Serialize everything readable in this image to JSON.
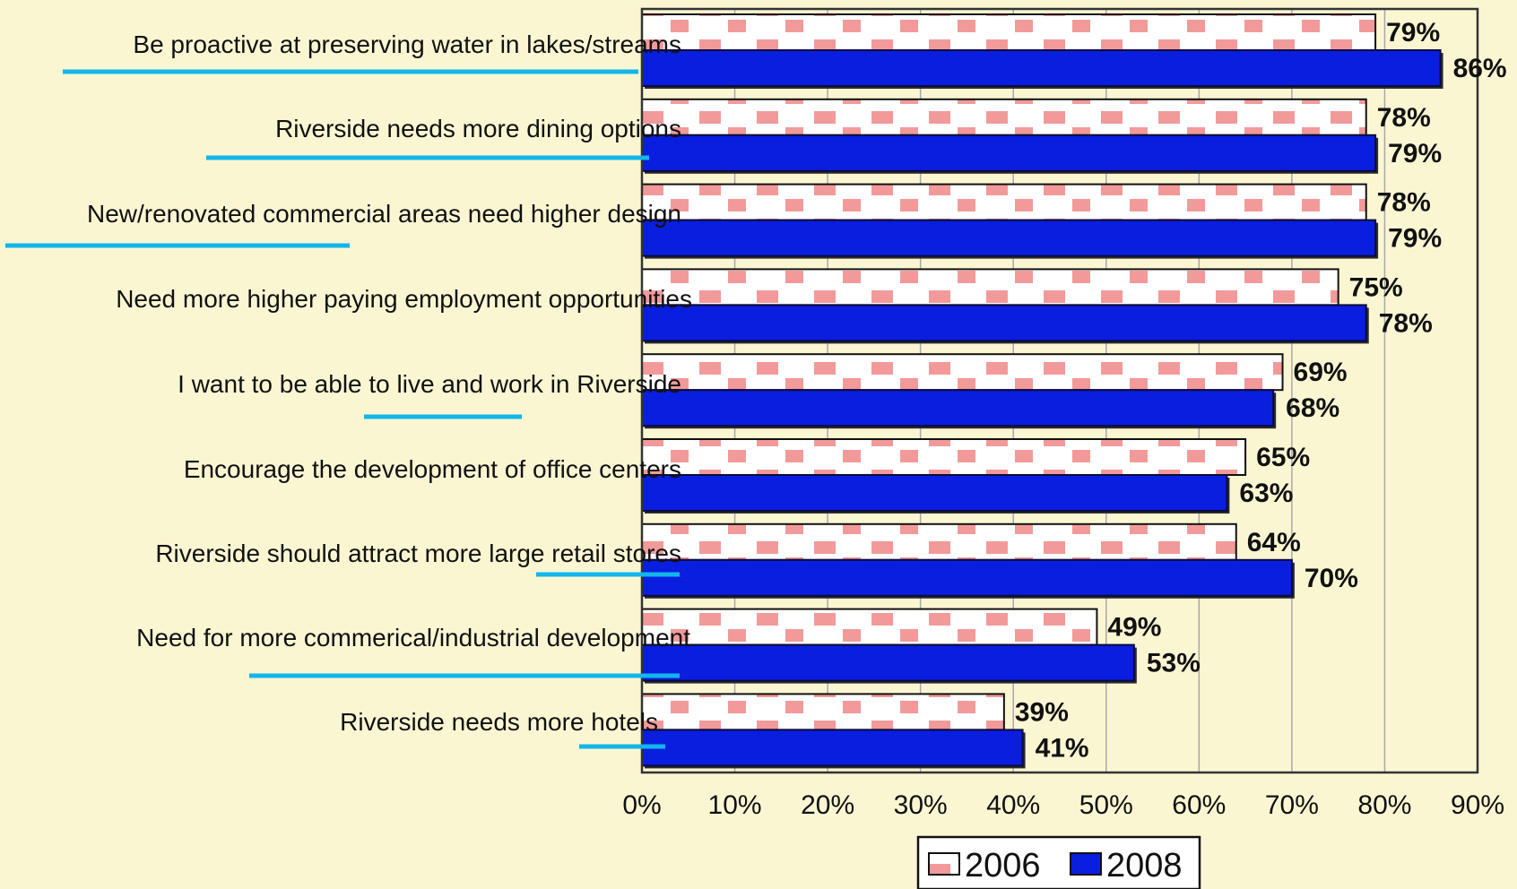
{
  "chart_data": {
    "type": "bar",
    "orientation": "horizontal",
    "categories": [
      "Be proactive at preserving water in lakes/streams",
      "Riverside needs more dining options",
      "New/renovated commercial areas need higher design",
      "Need more higher paying employment opportunities",
      "I want to be able to live and work in Riverside",
      "Encourage the development of office centers",
      "Riverside should attract more large retail stores",
      "Need for more commerical/industrial development",
      "Riverside needs more hotels"
    ],
    "series": [
      {
        "name": "2006",
        "values": [
          79,
          78,
          78,
          75,
          69,
          65,
          64,
          49,
          39
        ],
        "labels": [
          "79%",
          "78%",
          "78%",
          "75%",
          "69%",
          "65%",
          "64%",
          "49%",
          "39%"
        ],
        "fill": "#ffffff",
        "pattern_color": "#f29a9a"
      },
      {
        "name": "2008",
        "values": [
          86,
          79,
          79,
          78,
          68,
          63,
          70,
          53,
          41
        ],
        "labels": [
          "86%",
          "79%",
          "79%",
          "78%",
          "68%",
          "63%",
          "70%",
          "53%",
          "41%"
        ],
        "fill": "#0a1ee0"
      }
    ],
    "xticks": [
      "0%",
      "10%",
      "20%",
      "30%",
      "40%",
      "50%",
      "60%",
      "70%",
      "80%",
      "90%"
    ],
    "xlim": [
      0,
      90
    ],
    "grid": true,
    "legend": "bottom",
    "title": "",
    "xlabel": "",
    "ylabel": "",
    "highlight_underline_color": "#13b6ea",
    "background_color": "#fbf6d2",
    "grid_color": "#a8a8a8"
  }
}
